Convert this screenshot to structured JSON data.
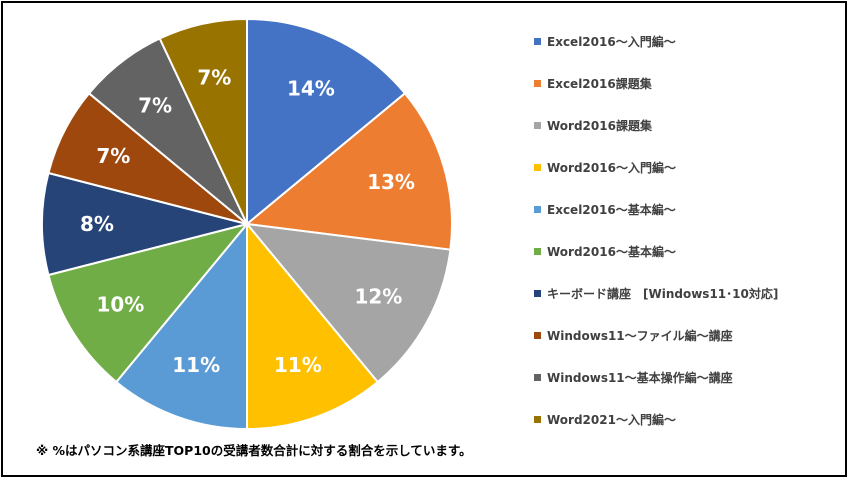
{
  "chart_data": {
    "type": "pie",
    "categories": [
      "Excel2016〜入門編〜",
      "Excel2016課題集",
      "Word2016課題集",
      "Word2016〜入門編〜",
      "Excel2016〜基本編〜",
      "Word2016〜基本編〜",
      "キーボード講座　[Windows11･10対応]",
      "Windows11〜ファイル編〜講座",
      "Windows11〜基本操作編〜講座",
      "Word2021〜入門編〜"
    ],
    "values": [
      14,
      13,
      12,
      11,
      11,
      10,
      8,
      7,
      7,
      7
    ],
    "labels": [
      "14%",
      "13%",
      "12%",
      "11%",
      "11%",
      "10%",
      "8%",
      "7%",
      "7%",
      "7%"
    ],
    "colors": [
      "#4472C4",
      "#ED7D31",
      "#A5A5A5",
      "#FFC000",
      "#5B9BD5",
      "#70AD47",
      "#264478",
      "#9E480E",
      "#636363",
      "#997300"
    ],
    "legend_position": "right"
  },
  "footnote": "※ %はパソコン系講座TOP10の受講者数合計に対する割合を示しています。"
}
